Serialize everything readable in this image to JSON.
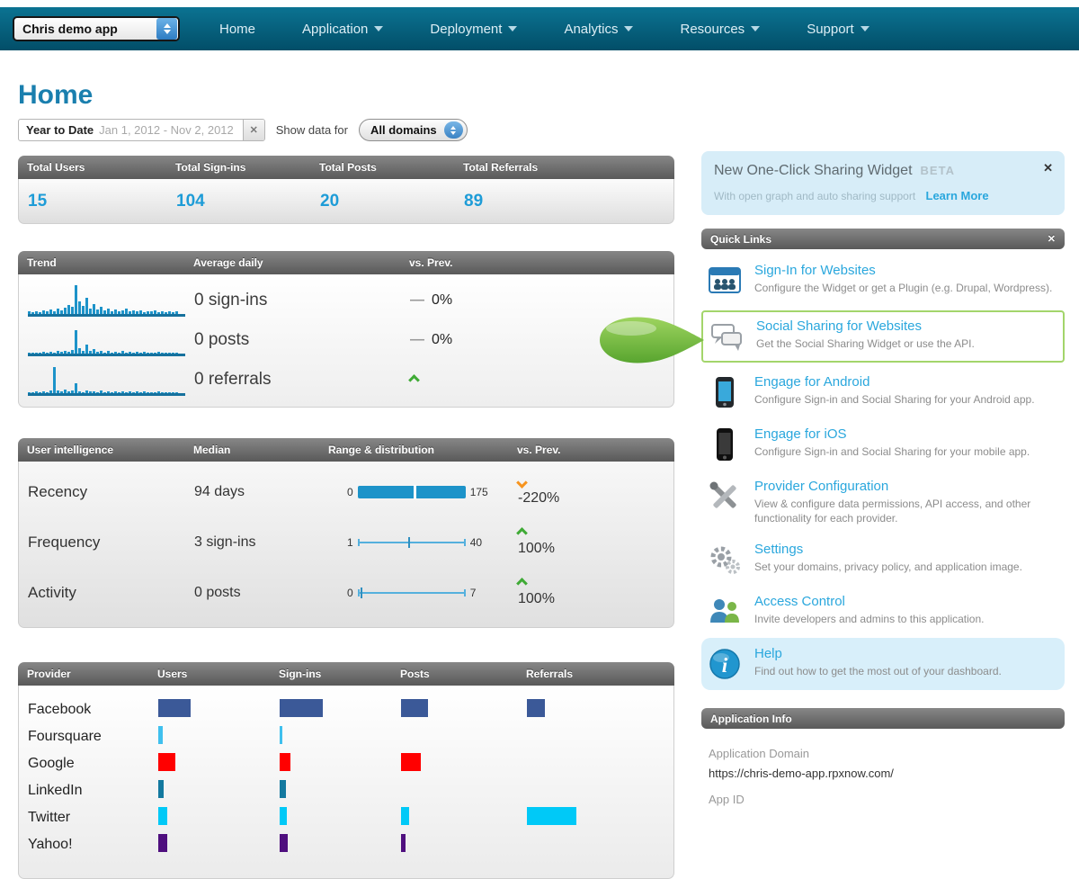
{
  "nav": {
    "app_selector_label": "Chris demo app",
    "items": [
      {
        "label": "Home",
        "has_dropdown": false
      },
      {
        "label": "Application",
        "has_dropdown": true
      },
      {
        "label": "Deployment",
        "has_dropdown": true
      },
      {
        "label": "Analytics",
        "has_dropdown": true
      },
      {
        "label": "Resources",
        "has_dropdown": true
      },
      {
        "label": "Support",
        "has_dropdown": true
      }
    ]
  },
  "page_title": "Home",
  "filters": {
    "range_label": "Year to Date",
    "range_value": "Jan 1, 2012 - Nov 2, 2012",
    "show_label": "Show data for",
    "domain_value": "All domains"
  },
  "stats": {
    "headers": [
      "Total Users",
      "Total Sign-ins",
      "Total Posts",
      "Total Referrals"
    ],
    "values": [
      "15",
      "104",
      "20",
      "89"
    ]
  },
  "trend": {
    "header": {
      "col1": "Trend",
      "col2": "Average daily",
      "col3": "vs. Prev."
    },
    "rows": [
      {
        "label": "0 sign-ins",
        "dash": "—",
        "change": "0%",
        "direction": "flat"
      },
      {
        "label": "0 posts",
        "dash": "—",
        "change": "0%",
        "direction": "flat"
      },
      {
        "label": "0 referrals",
        "dash": "",
        "change": "",
        "direction": "up"
      }
    ]
  },
  "user_intelligence": {
    "header": {
      "col1": "User intelligence",
      "col2": "Median",
      "col3": "Range & distribution",
      "col4": "vs. Prev."
    },
    "rows": [
      {
        "label": "Recency",
        "median": "94 days",
        "min": "0",
        "max": "175",
        "change": "-220%",
        "direction": "down"
      },
      {
        "label": "Frequency",
        "median": "3 sign-ins",
        "min": "1",
        "max": "40",
        "change": "100%",
        "direction": "up"
      },
      {
        "label": "Activity",
        "median": "0 posts",
        "min": "0",
        "max": "7",
        "change": "100%",
        "direction": "up"
      }
    ]
  },
  "providers": {
    "headers": [
      "Provider",
      "Users",
      "Sign-ins",
      "Posts",
      "Referrals"
    ],
    "rows": [
      {
        "name": "Facebook"
      },
      {
        "name": "Foursquare"
      },
      {
        "name": "Google"
      },
      {
        "name": "LinkedIn"
      },
      {
        "name": "Twitter"
      },
      {
        "name": "Yahoo!"
      }
    ]
  },
  "sharing_widget": {
    "title": "New One-Click Sharing Widget",
    "beta": "BETA",
    "subtitle": "With open graph and auto sharing support",
    "link": "Learn More"
  },
  "quick_links": {
    "title": "Quick Links",
    "items": [
      {
        "title": "Sign-In for Websites",
        "desc": "Configure the Widget or get a Plugin (e.g. Drupal, Wordpress)."
      },
      {
        "title": "Social Sharing for Websites",
        "desc": "Get the Social Sharing Widget or use the API."
      },
      {
        "title": "Engage for Android",
        "desc": "Configure Sign-in and Social Sharing for your Android app."
      },
      {
        "title": "Engage for iOS",
        "desc": "Configure Sign-in and Social Sharing for your mobile app."
      },
      {
        "title": "Provider Configuration",
        "desc": "View & configure data permissions, API access, and other functionality for each provider."
      },
      {
        "title": "Settings",
        "desc": "Set your domains, privacy policy, and application image."
      },
      {
        "title": "Access Control",
        "desc": "Invite developers and admins to this application."
      },
      {
        "title": "Help",
        "desc": "Find out how to get the most out of your dashboard."
      }
    ]
  },
  "app_info": {
    "title": "Application Info",
    "domain_label": "Application Domain",
    "domain_value": "https://chris-demo-app.rpxnow.com/",
    "app_id_label": "App ID"
  },
  "colors": {
    "nav_bg": "#025872",
    "link_blue": "#2aa7dd",
    "value_blue": "#1e9cd7",
    "up_green": "#3faa35",
    "down_orange": "#f7941e",
    "highlight_border": "#a3d56b"
  },
  "chart_data": [
    {
      "type": "bar",
      "name": "trend-signins",
      "title": "Trend sparkline: sign-ins",
      "color": "#1d93c9",
      "values": [
        8,
        5,
        10,
        6,
        12,
        8,
        15,
        10,
        18,
        12,
        22,
        30,
        25,
        100,
        45,
        28,
        55,
        20,
        35,
        15,
        25,
        12,
        18,
        10,
        15,
        8,
        12,
        18,
        10,
        14,
        8,
        12,
        6,
        10,
        8,
        12,
        6,
        8,
        5,
        8,
        6,
        10
      ]
    },
    {
      "type": "bar",
      "name": "trend-posts",
      "title": "Trend sparkline: posts",
      "color": "#1d93c9",
      "values": [
        3,
        0,
        4,
        2,
        5,
        3,
        6,
        4,
        8,
        5,
        10,
        6,
        12,
        80,
        20,
        10,
        30,
        8,
        15,
        5,
        10,
        4,
        8,
        3,
        6,
        4,
        8,
        3,
        5,
        4,
        6,
        3,
        5,
        2,
        4,
        3,
        5,
        2,
        4,
        3,
        4,
        2
      ]
    },
    {
      "type": "bar",
      "name": "trend-referrals",
      "title": "Trend sparkline: referrals",
      "color": "#1d93c9",
      "values": [
        4,
        2,
        5,
        3,
        6,
        3,
        8,
        90,
        10,
        5,
        12,
        6,
        8,
        35,
        6,
        4,
        10,
        5,
        6,
        4,
        8,
        4,
        6,
        3,
        5,
        4,
        6,
        3,
        5,
        3,
        6,
        4,
        5,
        3,
        4,
        3,
        5,
        3,
        4,
        3,
        4,
        3
      ]
    },
    {
      "type": "range",
      "name": "recency-range",
      "min": 0,
      "max": 175,
      "median_label": "94 days",
      "style": "filled",
      "marker_frac": 0.52
    },
    {
      "type": "range",
      "name": "frequency-range",
      "min": 1,
      "max": 40,
      "median_label": "3 sign-ins",
      "style": "line",
      "marker_frac": 0.47
    },
    {
      "type": "range",
      "name": "activity-range",
      "min": 0,
      "max": 7,
      "median_label": "0 posts",
      "style": "line",
      "marker_frac": 0.03
    },
    {
      "type": "bar",
      "name": "provider-usage",
      "orientation": "horizontal",
      "note": "bar lengths are approximate relative magnitudes read from pixels",
      "categories": [
        "Facebook",
        "Foursquare",
        "Google",
        "LinkedIn",
        "Twitter",
        "Yahoo!"
      ],
      "colors": [
        "#3b5998",
        "#3fc0ee",
        "#ff0000",
        "#13799f",
        "#00c9f7",
        "#4f0f7e"
      ],
      "series": [
        {
          "name": "Users",
          "values": [
            36,
            5,
            19,
            6,
            10,
            10
          ]
        },
        {
          "name": "Sign-ins",
          "values": [
            48,
            3,
            12,
            7,
            8,
            9
          ]
        },
        {
          "name": "Posts",
          "values": [
            30,
            0,
            22,
            0,
            9,
            5
          ]
        },
        {
          "name": "Referrals",
          "values": [
            20,
            0,
            0,
            0,
            55,
            0
          ]
        }
      ]
    }
  ]
}
